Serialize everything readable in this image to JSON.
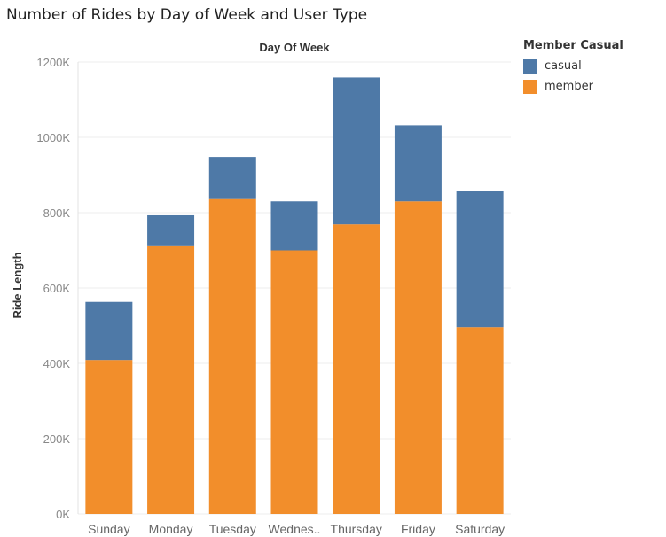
{
  "chart_data": {
    "type": "bar",
    "stacked": true,
    "title": "Number of Rides by Day of Week and User Type",
    "xlabel": "Day Of Week",
    "ylabel": "Ride Length",
    "categories": [
      "Sunday",
      "Monday",
      "Tuesday",
      "Wednes..",
      "Thursday",
      "Friday",
      "Saturday"
    ],
    "series": [
      {
        "name": "member",
        "color": "#F28E2B",
        "values": [
          409000,
          711000,
          836000,
          700000,
          769000,
          830000,
          496000
        ]
      },
      {
        "name": "casual",
        "color": "#4E79A7",
        "values": [
          154000,
          82000,
          112000,
          130000,
          390000,
          202000,
          361000
        ]
      }
    ],
    "ylim": [
      0,
      1200000
    ],
    "yticks": [
      0,
      200000,
      400000,
      600000,
      800000,
      1000000,
      1200000
    ],
    "ytick_labels": [
      "0K",
      "200K",
      "400K",
      "600K",
      "800K",
      "1000K",
      "1200K"
    ],
    "grid": true,
    "legend": {
      "title": "Member Casual",
      "placement": "right",
      "items": [
        {
          "label": "casual",
          "color": "#4E79A7"
        },
        {
          "label": "member",
          "color": "#F28E2B"
        }
      ]
    }
  }
}
